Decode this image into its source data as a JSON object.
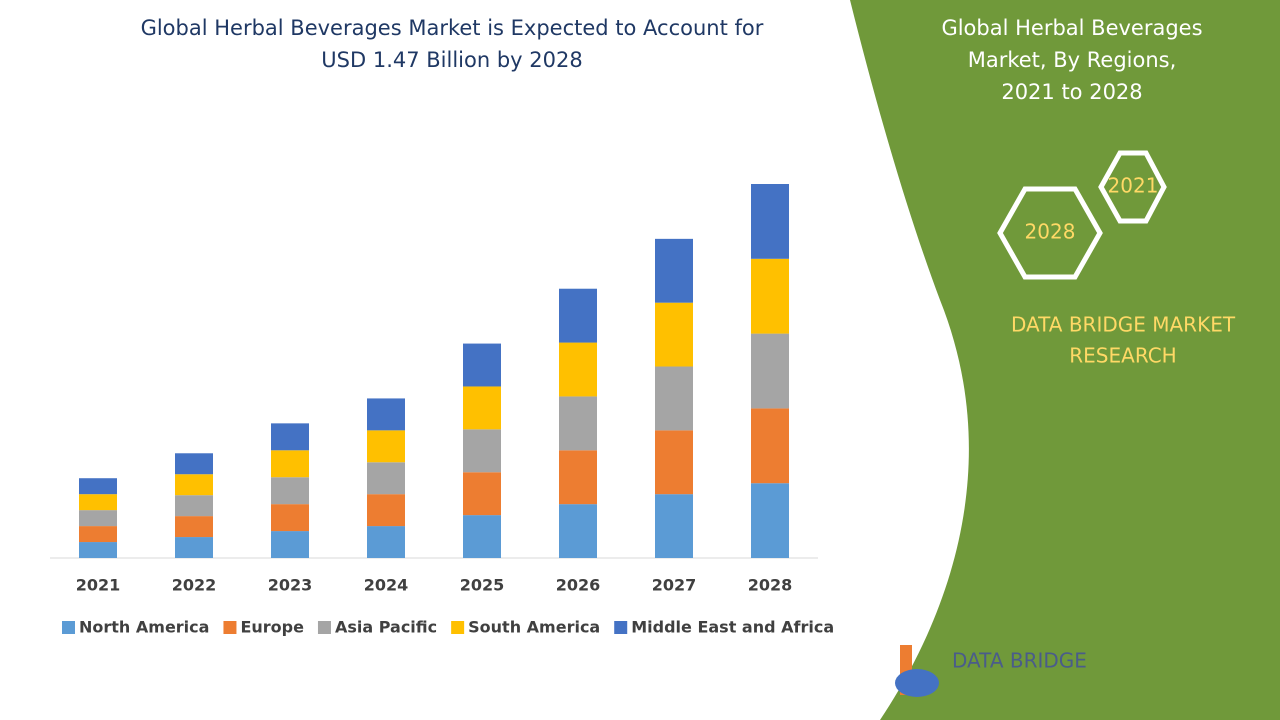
{
  "chart_data": {
    "type": "stacked_bar",
    "title": [
      "Global Herbal Beverages Market is Expected to Account for",
      "USD 1.47 Billion by 2028"
    ],
    "categories": [
      "2021",
      "2022",
      "2023",
      "2024",
      "2025",
      "2026",
      "2027",
      "2028"
    ],
    "series": [
      {
        "name": "North America",
        "color": "#5b9bd5",
        "values": [
          16,
          21,
          27,
          32,
          43,
          54,
          64,
          75
        ]
      },
      {
        "name": "Europe",
        "color": "#ed7d31",
        "values": [
          16,
          21,
          27,
          32,
          43,
          54,
          64,
          75
        ]
      },
      {
        "name": "Asia Pacific",
        "color": "#a5a5a5",
        "values": [
          16,
          21,
          27,
          32,
          43,
          54,
          64,
          75
        ]
      },
      {
        "name": "South America",
        "color": "#ffc000",
        "values": [
          16,
          21,
          27,
          32,
          43,
          54,
          64,
          75
        ]
      },
      {
        "name": "Middle East and Africa",
        "color": "#4472c4",
        "values": [
          16,
          21,
          27,
          32,
          43,
          54,
          64,
          75
        ]
      }
    ],
    "legend": "bottom"
  },
  "panel": {
    "title": [
      "Global Herbal Beverages",
      "Market, By Regions,",
      "2021 to 2028"
    ],
    "hexagons": [
      "2021",
      "2028"
    ],
    "brand": [
      "DATA BRIDGE MARKET",
      "RESEARCH"
    ]
  },
  "logo": {
    "text": "DATA BRIDGE"
  }
}
